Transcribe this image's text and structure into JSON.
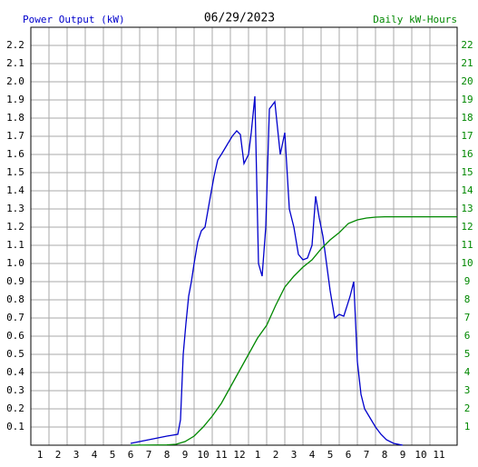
{
  "chart_data": {
    "type": "line",
    "title": "06/29/2023",
    "ylabel": "Power Output (kW)",
    "y2label": "Daily kW-Hours",
    "xlim": [
      0.5,
      24
    ],
    "ylim": [
      0,
      2.3
    ],
    "y2lim": [
      0,
      23
    ],
    "grid": true,
    "xticks": [
      1,
      2,
      3,
      4,
      5,
      6,
      7,
      8,
      9,
      10,
      11,
      12,
      {
        "value": 13,
        "label": "1"
      },
      {
        "value": 14,
        "label": "2"
      },
      {
        "value": 15,
        "label": "3"
      },
      {
        "value": 16,
        "label": "4"
      },
      {
        "value": 17,
        "label": "5"
      },
      {
        "value": 18,
        "label": "6"
      },
      {
        "value": 19,
        "label": "7"
      },
      {
        "value": 20,
        "label": "8"
      },
      {
        "value": 21,
        "label": "9"
      },
      {
        "value": 22,
        "label": "10"
      },
      {
        "value": 23,
        "label": "11"
      }
    ],
    "yticks": [
      0.1,
      0.2,
      0.3,
      0.4,
      0.5,
      0.6,
      0.7,
      0.8,
      0.9,
      {
        "value": 1,
        "label": "1.0"
      },
      1.1,
      1.2,
      1.3,
      1.4,
      1.5,
      1.6,
      1.7,
      1.8,
      1.9,
      {
        "value": 2,
        "label": "2.0"
      },
      2.1,
      2.2
    ],
    "y2ticks": [
      1,
      2,
      3,
      4,
      5,
      6,
      7,
      8,
      9,
      10,
      11,
      12,
      13,
      14,
      15,
      16,
      17,
      18,
      19,
      20,
      21,
      22
    ],
    "series": [
      {
        "color": "#0000cc",
        "x": [
          6.0,
          7.0,
          8.0,
          8.6,
          8.75,
          8.9,
          9.05,
          9.2,
          9.35,
          9.5,
          9.7,
          9.9,
          10.1,
          10.4,
          10.6,
          10.8,
          11.0,
          11.3,
          11.6,
          11.85,
          12.05,
          12.25,
          12.5,
          12.65,
          12.85,
          13.05,
          13.25,
          13.45,
          13.65,
          13.95,
          14.25,
          14.5,
          14.75,
          15.0,
          15.25,
          15.5,
          15.75,
          16.0,
          16.2,
          16.4,
          16.6,
          16.8,
          17.0,
          17.25,
          17.5,
          17.75,
          18.1,
          18.3,
          18.5,
          18.7,
          18.9,
          19.2,
          19.5,
          19.8,
          20.1,
          20.5,
          21.0
        ],
        "values": [
          0.01,
          0.03,
          0.05,
          0.06,
          0.14,
          0.5,
          0.67,
          0.82,
          0.9,
          1.0,
          1.12,
          1.18,
          1.2,
          1.37,
          1.48,
          1.57,
          1.6,
          1.65,
          1.7,
          1.73,
          1.71,
          1.55,
          1.6,
          1.72,
          1.92,
          1.0,
          0.93,
          1.2,
          1.85,
          1.89,
          1.6,
          1.72,
          1.3,
          1.2,
          1.05,
          1.02,
          1.03,
          1.1,
          1.37,
          1.25,
          1.15,
          1.0,
          0.85,
          0.7,
          0.72,
          0.71,
          0.82,
          0.9,
          0.46,
          0.28,
          0.2,
          0.15,
          0.1,
          0.06,
          0.03,
          0.01,
          0.0
        ]
      },
      {
        "color": "#008800",
        "axis": "y2",
        "x": [
          6.0,
          8.0,
          8.5,
          9.0,
          9.5,
          10.0,
          10.5,
          11.0,
          11.5,
          12.0,
          12.5,
          13.0,
          13.5,
          14.0,
          14.5,
          15.0,
          15.5,
          16.0,
          16.5,
          17.0,
          17.5,
          18.0,
          18.5,
          19.0,
          19.5,
          20.0,
          24.0
        ],
        "values": [
          0,
          0.02,
          0.05,
          0.2,
          0.5,
          1.0,
          1.6,
          2.3,
          3.2,
          4.1,
          5.0,
          5.9,
          6.6,
          7.7,
          8.7,
          9.3,
          9.8,
          10.2,
          10.8,
          11.3,
          11.7,
          12.2,
          12.4,
          12.5,
          12.55,
          12.57,
          12.57
        ]
      }
    ]
  }
}
